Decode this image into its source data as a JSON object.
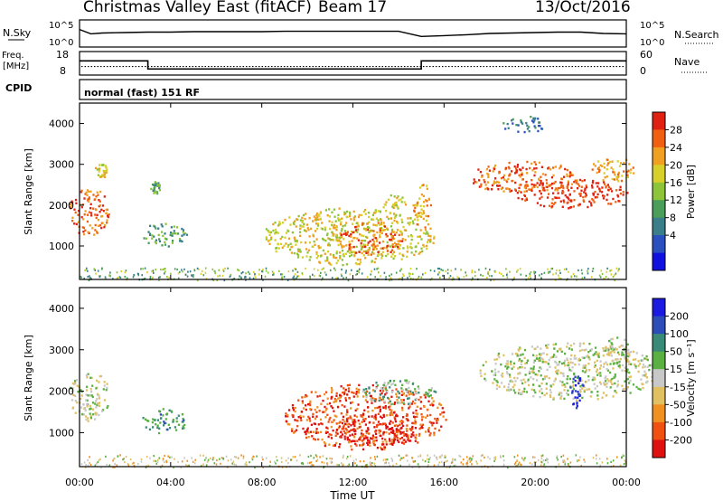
{
  "header": {
    "station": "Christmas Valley East (fitACF)",
    "beam": "Beam 17",
    "date": "13/Oct/2016"
  },
  "noise_panel": {
    "left_label": "N.Sky",
    "right_label": "N.Search",
    "ticks": [
      "10^5",
      "10^0"
    ],
    "right_ticks": [
      "10^5",
      "10^0"
    ]
  },
  "freq_panel": {
    "left_label_1": "Freq.",
    "left_label_2": "[MHz]",
    "left_ticks": [
      "18",
      "8"
    ],
    "right_label": "Nave",
    "right_ticks": [
      "60",
      "0"
    ]
  },
  "cpid_panel": {
    "label": "CPID",
    "mode": "normal (fast) 151 RF"
  },
  "axes": {
    "xlabel": "Time UT",
    "ylabel": "Slant Range [km]",
    "x_ticks": [
      "00:00",
      "04:00",
      "08:00",
      "12:00",
      "16:00",
      "20:00",
      "00:00"
    ],
    "y_ticks": [
      "1000",
      "2000",
      "3000",
      "4000"
    ]
  },
  "colorbars": {
    "power": {
      "label": "Power [dB]",
      "ticks": [
        "4",
        "8",
        "12",
        "16",
        "20",
        "24",
        "28"
      ],
      "colors": [
        "#1010e0",
        "#2a50c0",
        "#3a7e8a",
        "#4a9e5a",
        "#8ec43a",
        "#d8d02a",
        "#f0a020",
        "#f06010",
        "#e02010"
      ]
    },
    "velocity": {
      "label": "Velocity [m s⁻¹]",
      "ticks": [
        "200",
        "100",
        "50",
        "15",
        "-15",
        "-50",
        "-100",
        "-200"
      ],
      "colors": [
        "#1a1ae0",
        "#2c4cb8",
        "#3a8a78",
        "#5ab040",
        "#c8c8c8",
        "#e0c060",
        "#f09020",
        "#f05010",
        "#e01010"
      ]
    }
  },
  "chart_data": [
    {
      "type": "line",
      "name": "noise",
      "x_hours": [
        0,
        0.5,
        1,
        2,
        3,
        4,
        5,
        6,
        7,
        8,
        9,
        10,
        11,
        12,
        13,
        14,
        15,
        16,
        17,
        18,
        19,
        20,
        21,
        22,
        23,
        24
      ],
      "n_sky_log": [
        3.2,
        2.2,
        2.4,
        2.5,
        2.6,
        2.6,
        2.7,
        2.7,
        2.7,
        2.7,
        2.8,
        2.8,
        2.8,
        2.8,
        2.8,
        2.8,
        1.6,
        1.8,
        2.0,
        2.3,
        2.4,
        2.5,
        2.6,
        2.6,
        2.3,
        2.2
      ],
      "ylim": [
        0,
        5
      ]
    },
    {
      "type": "line",
      "name": "frequency",
      "segments": [
        {
          "x_start": 0,
          "x_end": 3,
          "freq_mhz": 14.4
        },
        {
          "x_start": 3,
          "x_end": 15,
          "freq_mhz": 10.5
        },
        {
          "x_start": 15,
          "x_end": 24,
          "freq_mhz": 14.4
        }
      ],
      "nave": 22,
      "ylim": [
        8,
        18
      ],
      "nave_lim": [
        0,
        60
      ]
    },
    {
      "type": "heatmap",
      "name": "power",
      "x_range_hours": [
        0,
        24
      ],
      "y_range_km": [
        180,
        4500
      ],
      "patches": [
        {
          "x": 0.4,
          "y": 1850,
          "w": 0.9,
          "h": 600,
          "level": 7
        },
        {
          "x": 0.9,
          "y": 2850,
          "w": 0.3,
          "h": 200,
          "level": 5
        },
        {
          "x": 3.7,
          "y": 1300,
          "w": 1.0,
          "h": 300,
          "level": 3
        },
        {
          "x": 3.3,
          "y": 2450,
          "w": 0.2,
          "h": 150,
          "level": 3
        },
        {
          "x": 11.8,
          "y": 1250,
          "w": 3.8,
          "h": 700,
          "level": 5
        },
        {
          "x": 12.8,
          "y": 1200,
          "w": 1.5,
          "h": 400,
          "level": 7
        },
        {
          "x": 13.8,
          "y": 2000,
          "w": 0.5,
          "h": 300,
          "level": 5
        },
        {
          "x": 15.0,
          "y": 2000,
          "w": 0.4,
          "h": 600,
          "level": 6
        },
        {
          "x": 19.5,
          "y": 2700,
          "w": 2.4,
          "h": 400,
          "level": 7
        },
        {
          "x": 21.5,
          "y": 2300,
          "w": 2.6,
          "h": 350,
          "level": 8
        },
        {
          "x": 23.4,
          "y": 2900,
          "w": 1.0,
          "h": 300,
          "level": 6
        },
        {
          "x": 19.5,
          "y": 4000,
          "w": 1.0,
          "h": 200,
          "level": 2
        }
      ]
    },
    {
      "type": "heatmap",
      "name": "velocity",
      "x_range_hours": [
        0,
        24
      ],
      "y_range_km": [
        180,
        4500
      ],
      "patches": [
        {
          "x": 0.4,
          "y": 1900,
          "w": 0.9,
          "h": 600,
          "level": 4
        },
        {
          "x": 3.7,
          "y": 1300,
          "w": 1.0,
          "h": 300,
          "level": 2
        },
        {
          "x": 12.5,
          "y": 1400,
          "w": 3.6,
          "h": 800,
          "level": 7
        },
        {
          "x": 13.0,
          "y": 1100,
          "w": 1.8,
          "h": 400,
          "level": 8
        },
        {
          "x": 14.0,
          "y": 2000,
          "w": 1.6,
          "h": 300,
          "level": 3
        },
        {
          "x": 21.5,
          "y": 2500,
          "w": 4.0,
          "h": 700,
          "level": 4
        },
        {
          "x": 23.6,
          "y": 3000,
          "w": 0.6,
          "h": 400,
          "level": 4
        },
        {
          "x": 21.8,
          "y": 2000,
          "w": 0.3,
          "h": 400,
          "level": 0
        }
      ]
    }
  ]
}
